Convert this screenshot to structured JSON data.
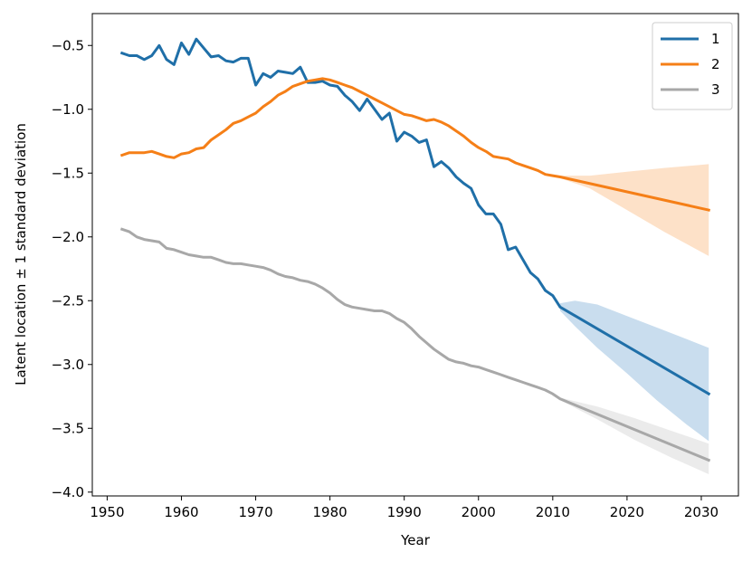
{
  "chart_data": {
    "type": "line",
    "title": "",
    "xlabel": "Year",
    "ylabel": "Latent location ± 1 standard deviation",
    "xlim": [
      1948,
      2035
    ],
    "ylim": [
      -4.03,
      -0.25
    ],
    "xticks": [
      1950,
      1960,
      1970,
      1980,
      1990,
      2000,
      2010,
      2020,
      2030
    ],
    "yticks": [
      -0.5,
      -1.0,
      -1.5,
      -2.0,
      -2.5,
      -3.0,
      -3.5,
      -4.0
    ],
    "xtick_labels": [
      "1950",
      "1960",
      "1970",
      "1980",
      "1990",
      "2000",
      "2010",
      "2020",
      "2030"
    ],
    "ytick_labels": [
      "−0.5",
      "−1.0",
      "−1.5",
      "−2.0",
      "−2.5",
      "−3.0",
      "−3.5",
      "−4.0"
    ],
    "legend_position": "top-right",
    "series": [
      {
        "name": "1",
        "color": "#1f6fa8",
        "band_color": "#c9ddee",
        "points": [
          [
            1952,
            -0.56
          ],
          [
            1953,
            -0.58
          ],
          [
            1954,
            -0.58
          ],
          [
            1955,
            -0.61
          ],
          [
            1956,
            -0.58
          ],
          [
            1957,
            -0.5
          ],
          [
            1958,
            -0.61
          ],
          [
            1959,
            -0.65
          ],
          [
            1960,
            -0.48
          ],
          [
            1961,
            -0.57
          ],
          [
            1962,
            -0.45
          ],
          [
            1963,
            -0.52
          ],
          [
            1964,
            -0.59
          ],
          [
            1965,
            -0.58
          ],
          [
            1966,
            -0.62
          ],
          [
            1967,
            -0.63
          ],
          [
            1968,
            -0.6
          ],
          [
            1969,
            -0.6
          ],
          [
            1970,
            -0.81
          ],
          [
            1971,
            -0.72
          ],
          [
            1972,
            -0.75
          ],
          [
            1973,
            -0.7
          ],
          [
            1974,
            -0.71
          ],
          [
            1975,
            -0.72
          ],
          [
            1976,
            -0.67
          ],
          [
            1977,
            -0.79
          ],
          [
            1978,
            -0.79
          ],
          [
            1979,
            -0.78
          ],
          [
            1980,
            -0.81
          ],
          [
            1981,
            -0.82
          ],
          [
            1982,
            -0.89
          ],
          [
            1983,
            -0.94
          ],
          [
            1984,
            -1.01
          ],
          [
            1985,
            -0.92
          ],
          [
            1986,
            -1.0
          ],
          [
            1987,
            -1.08
          ],
          [
            1988,
            -1.03
          ],
          [
            1989,
            -1.25
          ],
          [
            1990,
            -1.18
          ],
          [
            1991,
            -1.21
          ],
          [
            1992,
            -1.26
          ],
          [
            1993,
            -1.24
          ],
          [
            1994,
            -1.45
          ],
          [
            1995,
            -1.41
          ],
          [
            1996,
            -1.46
          ],
          [
            1997,
            -1.53
          ],
          [
            1998,
            -1.58
          ],
          [
            1999,
            -1.62
          ],
          [
            2000,
            -1.75
          ],
          [
            2001,
            -1.82
          ],
          [
            2002,
            -1.82
          ],
          [
            2003,
            -1.9
          ],
          [
            2004,
            -2.1
          ],
          [
            2005,
            -2.08
          ],
          [
            2006,
            -2.18
          ],
          [
            2007,
            -2.28
          ],
          [
            2008,
            -2.33
          ],
          [
            2009,
            -2.42
          ],
          [
            2010,
            -2.46
          ],
          [
            2011,
            -2.55
          ],
          [
            2031,
            -3.23
          ]
        ],
        "band": {
          "x": [
            2011,
            2013,
            2016,
            2020,
            2024,
            2028,
            2031
          ],
          "upper": [
            -2.52,
            -2.5,
            -2.53,
            -2.62,
            -2.71,
            -2.8,
            -2.87
          ],
          "lower": [
            -2.58,
            -2.7,
            -2.87,
            -3.07,
            -3.28,
            -3.47,
            -3.6
          ]
        }
      },
      {
        "name": "2",
        "color": "#f57f17",
        "band_color": "#fde1c8",
        "points": [
          [
            1952,
            -1.36
          ],
          [
            1953,
            -1.34
          ],
          [
            1954,
            -1.34
          ],
          [
            1955,
            -1.34
          ],
          [
            1956,
            -1.33
          ],
          [
            1957,
            -1.35
          ],
          [
            1958,
            -1.37
          ],
          [
            1959,
            -1.38
          ],
          [
            1960,
            -1.35
          ],
          [
            1961,
            -1.34
          ],
          [
            1962,
            -1.31
          ],
          [
            1963,
            -1.3
          ],
          [
            1964,
            -1.24
          ],
          [
            1965,
            -1.2
          ],
          [
            1966,
            -1.16
          ],
          [
            1967,
            -1.11
          ],
          [
            1968,
            -1.09
          ],
          [
            1969,
            -1.06
          ],
          [
            1970,
            -1.03
          ],
          [
            1971,
            -0.98
          ],
          [
            1972,
            -0.94
          ],
          [
            1973,
            -0.89
          ],
          [
            1974,
            -0.86
          ],
          [
            1975,
            -0.82
          ],
          [
            1976,
            -0.8
          ],
          [
            1977,
            -0.78
          ],
          [
            1978,
            -0.77
          ],
          [
            1979,
            -0.76
          ],
          [
            1980,
            -0.77
          ],
          [
            1981,
            -0.79
          ],
          [
            1982,
            -0.81
          ],
          [
            1983,
            -0.83
          ],
          [
            1984,
            -0.86
          ],
          [
            1985,
            -0.89
          ],
          [
            1986,
            -0.92
          ],
          [
            1987,
            -0.95
          ],
          [
            1988,
            -0.98
          ],
          [
            1989,
            -1.01
          ],
          [
            1990,
            -1.04
          ],
          [
            1991,
            -1.05
          ],
          [
            1992,
            -1.07
          ],
          [
            1993,
            -1.09
          ],
          [
            1994,
            -1.08
          ],
          [
            1995,
            -1.1
          ],
          [
            1996,
            -1.13
          ],
          [
            1997,
            -1.17
          ],
          [
            1998,
            -1.21
          ],
          [
            1999,
            -1.26
          ],
          [
            2000,
            -1.3
          ],
          [
            2001,
            -1.33
          ],
          [
            2002,
            -1.37
          ],
          [
            2003,
            -1.38
          ],
          [
            2004,
            -1.39
          ],
          [
            2005,
            -1.42
          ],
          [
            2006,
            -1.44
          ],
          [
            2007,
            -1.46
          ],
          [
            2008,
            -1.48
          ],
          [
            2009,
            -1.51
          ],
          [
            2010,
            -1.52
          ],
          [
            2011,
            -1.53
          ],
          [
            2031,
            -1.79
          ]
        ],
        "band": {
          "x": [
            2011,
            2015,
            2020,
            2025,
            2031
          ],
          "upper": [
            -1.52,
            -1.52,
            -1.49,
            -1.46,
            -1.43
          ],
          "lower": [
            -1.54,
            -1.62,
            -1.79,
            -1.96,
            -2.15
          ]
        }
      },
      {
        "name": "3",
        "color": "#a8a8a8",
        "band_color": "#ebebeb",
        "points": [
          [
            1952,
            -1.94
          ],
          [
            1953,
            -1.96
          ],
          [
            1954,
            -2.0
          ],
          [
            1955,
            -2.02
          ],
          [
            1956,
            -2.03
          ],
          [
            1957,
            -2.04
          ],
          [
            1958,
            -2.09
          ],
          [
            1959,
            -2.1
          ],
          [
            1960,
            -2.12
          ],
          [
            1961,
            -2.14
          ],
          [
            1962,
            -2.15
          ],
          [
            1963,
            -2.16
          ],
          [
            1964,
            -2.16
          ],
          [
            1965,
            -2.18
          ],
          [
            1966,
            -2.2
          ],
          [
            1967,
            -2.21
          ],
          [
            1968,
            -2.21
          ],
          [
            1969,
            -2.22
          ],
          [
            1970,
            -2.23
          ],
          [
            1971,
            -2.24
          ],
          [
            1972,
            -2.26
          ],
          [
            1973,
            -2.29
          ],
          [
            1974,
            -2.31
          ],
          [
            1975,
            -2.32
          ],
          [
            1976,
            -2.34
          ],
          [
            1977,
            -2.35
          ],
          [
            1978,
            -2.37
          ],
          [
            1979,
            -2.4
          ],
          [
            1980,
            -2.44
          ],
          [
            1981,
            -2.49
          ],
          [
            1982,
            -2.53
          ],
          [
            1983,
            -2.55
          ],
          [
            1984,
            -2.56
          ],
          [
            1985,
            -2.57
          ],
          [
            1986,
            -2.58
          ],
          [
            1987,
            -2.58
          ],
          [
            1988,
            -2.6
          ],
          [
            1989,
            -2.64
          ],
          [
            1990,
            -2.67
          ],
          [
            1991,
            -2.72
          ],
          [
            1992,
            -2.78
          ],
          [
            1993,
            -2.83
          ],
          [
            1994,
            -2.88
          ],
          [
            1995,
            -2.92
          ],
          [
            1996,
            -2.96
          ],
          [
            1997,
            -2.98
          ],
          [
            1998,
            -2.99
          ],
          [
            1999,
            -3.01
          ],
          [
            2000,
            -3.02
          ],
          [
            2001,
            -3.04
          ],
          [
            2002,
            -3.06
          ],
          [
            2003,
            -3.08
          ],
          [
            2004,
            -3.1
          ],
          [
            2005,
            -3.12
          ],
          [
            2006,
            -3.14
          ],
          [
            2007,
            -3.16
          ],
          [
            2008,
            -3.18
          ],
          [
            2009,
            -3.2
          ],
          [
            2010,
            -3.23
          ],
          [
            2011,
            -3.27
          ],
          [
            2031,
            -3.75
          ]
        ],
        "band": {
          "x": [
            2011,
            2016,
            2021,
            2026,
            2031
          ],
          "upper": [
            -3.26,
            -3.33,
            -3.42,
            -3.52,
            -3.62
          ],
          "lower": [
            -3.28,
            -3.43,
            -3.59,
            -3.73,
            -3.86
          ]
        }
      }
    ]
  }
}
